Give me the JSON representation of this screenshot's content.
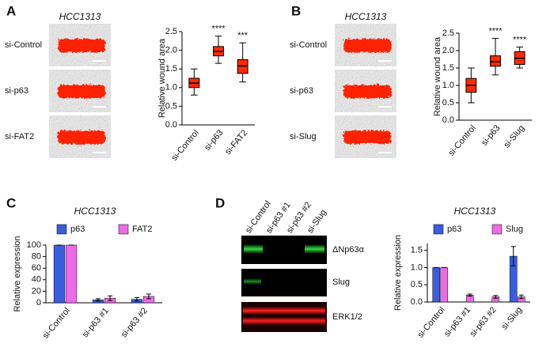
{
  "panels": [
    {
      "letter": "A",
      "title": "HCC1313",
      "image_labels": [
        "si-Control",
        "si-p63",
        "si-FAT2"
      ]
    },
    {
      "letter": "B",
      "title": "HCC1313",
      "image_labels": [
        "si-Control",
        "si-p63",
        "si-Slug"
      ]
    },
    {
      "letter": "C"
    },
    {
      "letter": "D",
      "lane_labels": [
        "si-Control",
        "si-p63 #1",
        "si-p63 #2",
        "si-Slug"
      ],
      "band_labels": [
        "ΔNp63α",
        "Slug",
        "ERK1/2"
      ]
    }
  ],
  "chart_data": [
    {
      "type": "box",
      "ylabel": "Relative wound area",
      "categories": [
        "si-Control",
        "si-p63",
        "si-FAT2"
      ],
      "min": [
        0.8,
        1.65,
        1.15
      ],
      "q1": [
        1.0,
        1.85,
        1.38
      ],
      "median": [
        1.12,
        1.97,
        1.58
      ],
      "q3": [
        1.25,
        2.1,
        1.75
      ],
      "max": [
        1.5,
        2.38,
        2.2
      ],
      "annotations": [
        null,
        "****",
        "***"
      ],
      "color": "#ff2a00",
      "ylim": [
        0,
        2.5
      ],
      "yticks": [
        {
          "value": 0,
          "label": "0.0"
        },
        0.5,
        {
          "value": 1,
          "label": "1.0"
        },
        1.5,
        {
          "value": 2,
          "label": "2.0"
        },
        2.5
      ]
    },
    {
      "type": "box",
      "ylabel": "Relative wound area",
      "categories": [
        "si-Control",
        "si-p63",
        "si-Slug"
      ],
      "min": [
        0.5,
        1.3,
        1.5
      ],
      "q1": [
        0.8,
        1.55,
        1.6
      ],
      "median": [
        1.0,
        1.68,
        1.78
      ],
      "q3": [
        1.2,
        1.85,
        1.97
      ],
      "max": [
        1.5,
        2.35,
        2.1
      ],
      "annotations": [
        null,
        "****",
        "****"
      ],
      "color": "#ff2a00",
      "ylim": [
        0,
        2.5
      ],
      "yticks": [
        {
          "value": 0,
          "label": "0.0"
        },
        0.5,
        {
          "value": 1,
          "label": "1.0"
        },
        1.5,
        {
          "value": 2,
          "label": "2.0"
        },
        2.5
      ]
    },
    {
      "type": "bar",
      "title": "HCC1313",
      "ylabel": "Relative expression",
      "categories": [
        "si-Control",
        "si-p63 #1",
        "si-p63 #2"
      ],
      "series": [
        {
          "name": "p63",
          "color": "#3a5de0",
          "values": [
            100,
            5,
            6
          ],
          "errors": [
            0,
            2,
            3
          ]
        },
        {
          "name": "FAT2",
          "color": "#ee6ae6",
          "values": [
            100,
            8,
            11
          ],
          "errors": [
            0,
            4,
            4
          ]
        }
      ],
      "ylim": [
        0,
        100
      ],
      "yticks": [
        0,
        20,
        40,
        60,
        80,
        100
      ]
    },
    {
      "type": "bar",
      "title": "HCC1313",
      "ylabel": "Relative expression",
      "categories": [
        "si-Control",
        "si-p63 #1",
        "si-p63 #2",
        "si-Slug"
      ],
      "series": [
        {
          "name": "p63",
          "color": "#3a5de0",
          "values": [
            1.0,
            0.0,
            0.0,
            1.33
          ],
          "errors": [
            0,
            0,
            0,
            0.28
          ]
        },
        {
          "name": "Slug",
          "color": "#ee6ae6",
          "values": [
            1.0,
            0.2,
            0.15,
            0.15
          ],
          "errors": [
            0,
            0.03,
            0.04,
            0.05
          ]
        }
      ],
      "ylim": [
        0,
        1.7
      ],
      "yticks": [
        {
          "value": 0,
          "label": "0.0"
        },
        0.5,
        {
          "value": 1,
          "label": "1.0"
        },
        1.5
      ]
    }
  ]
}
